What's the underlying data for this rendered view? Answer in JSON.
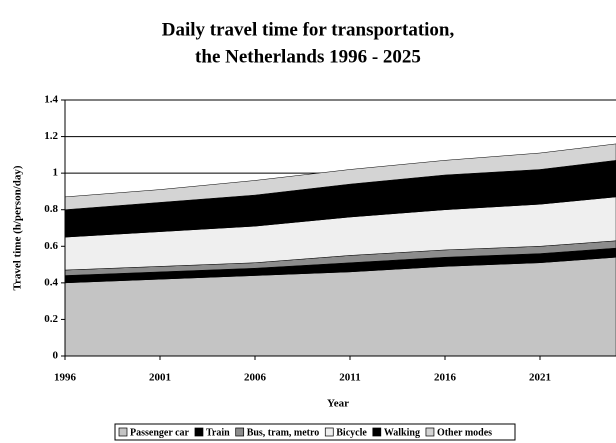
{
  "chart_data": {
    "type": "stacked_area",
    "title": [
      "Daily travel time for transportation,",
      "the Netherlands 1996 - 2025"
    ],
    "x_label": "Year",
    "y_label": "Travel time (h/person/day)",
    "x": [
      1996,
      2001,
      2006,
      2011,
      2016,
      2021,
      2025
    ],
    "xlim": [
      1996,
      2025
    ],
    "xticks": [
      1996,
      2001,
      2006,
      2011,
      2016,
      2021
    ],
    "ylim": [
      0,
      1.4
    ],
    "yticks": [
      0,
      0.2,
      0.4,
      0.6,
      0.8,
      1,
      1.2,
      1.4
    ],
    "grid": true,
    "legend": "bottom",
    "series": [
      {
        "name": "Passenger car",
        "color": "#c4c4c4",
        "values": [
          0.4,
          0.42,
          0.44,
          0.46,
          0.49,
          0.51,
          0.54
        ]
      },
      {
        "name": "Train",
        "color": "#000000",
        "values": [
          0.04,
          0.04,
          0.04,
          0.05,
          0.05,
          0.05,
          0.05
        ]
      },
      {
        "name": "Bus, tram, metro",
        "color": "#8c8c8c",
        "values": [
          0.03,
          0.03,
          0.03,
          0.04,
          0.04,
          0.04,
          0.04
        ]
      },
      {
        "name": "Bicycle",
        "color": "#efefef",
        "values": [
          0.18,
          0.19,
          0.2,
          0.21,
          0.22,
          0.23,
          0.24
        ]
      },
      {
        "name": "Walking",
        "color": "#000000",
        "values": [
          0.15,
          0.16,
          0.17,
          0.18,
          0.19,
          0.19,
          0.2
        ]
      },
      {
        "name": "Other modes",
        "color": "#d4d4d4",
        "values": [
          0.07,
          0.07,
          0.08,
          0.08,
          0.08,
          0.09,
          0.09
        ]
      }
    ]
  }
}
